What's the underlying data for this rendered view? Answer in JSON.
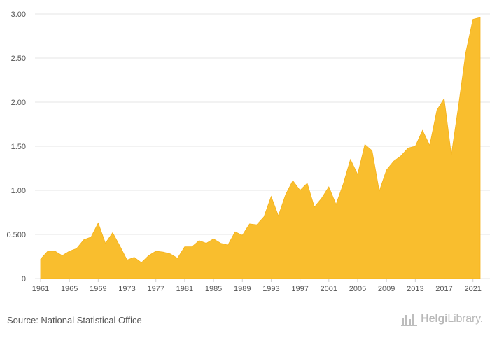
{
  "chart_data": {
    "type": "area",
    "color": "#F9BE2E",
    "x": [
      1961,
      1962,
      1963,
      1964,
      1965,
      1966,
      1967,
      1968,
      1969,
      1970,
      1971,
      1972,
      1973,
      1974,
      1975,
      1976,
      1977,
      1978,
      1979,
      1980,
      1981,
      1982,
      1983,
      1984,
      1985,
      1986,
      1987,
      1988,
      1989,
      1990,
      1991,
      1992,
      1993,
      1994,
      1995,
      1996,
      1997,
      1998,
      1999,
      2000,
      2001,
      2002,
      2003,
      2004,
      2005,
      2006,
      2007,
      2008,
      2009,
      2010,
      2011,
      2012,
      2013,
      2014,
      2015,
      2016,
      2017,
      2018,
      2019,
      2020,
      2021,
      2022
    ],
    "values": [
      0.22,
      0.31,
      0.31,
      0.26,
      0.31,
      0.34,
      0.44,
      0.47,
      0.63,
      0.4,
      0.52,
      0.37,
      0.21,
      0.24,
      0.18,
      0.26,
      0.31,
      0.3,
      0.28,
      0.23,
      0.36,
      0.36,
      0.43,
      0.4,
      0.45,
      0.4,
      0.38,
      0.53,
      0.49,
      0.62,
      0.61,
      0.7,
      0.93,
      0.71,
      0.95,
      1.11,
      1.0,
      1.08,
      0.81,
      0.91,
      1.04,
      0.84,
      1.07,
      1.35,
      1.18,
      1.52,
      1.45,
      0.99,
      1.23,
      1.33,
      1.39,
      1.48,
      1.5,
      1.68,
      1.51,
      1.91,
      2.04,
      1.4,
      1.96,
      2.56,
      2.94,
      2.96
    ],
    "ylim": [
      0,
      3.0
    ],
    "yticks": [
      {
        "value": 0,
        "label": "0"
      },
      {
        "value": 0.5,
        "label": "0.500"
      },
      {
        "value": 1.0,
        "label": "1.00"
      },
      {
        "value": 1.5,
        "label": "1.50"
      },
      {
        "value": 2.0,
        "label": "2.00"
      },
      {
        "value": 2.5,
        "label": "2.50"
      },
      {
        "value": 3.0,
        "label": "3.00"
      }
    ],
    "xticks": [
      1961,
      1965,
      1969,
      1973,
      1977,
      1981,
      1985,
      1989,
      1993,
      1997,
      2001,
      2005,
      2009,
      2013,
      2017,
      2021
    ],
    "grid": true,
    "title": "",
    "xlabel": "",
    "ylabel": ""
  },
  "footer": {
    "source": "Source: National Statistical Office",
    "logo_icon": "chart-bars-icon",
    "logo_brand": "Helgi",
    "logo_suffix": "Library."
  }
}
